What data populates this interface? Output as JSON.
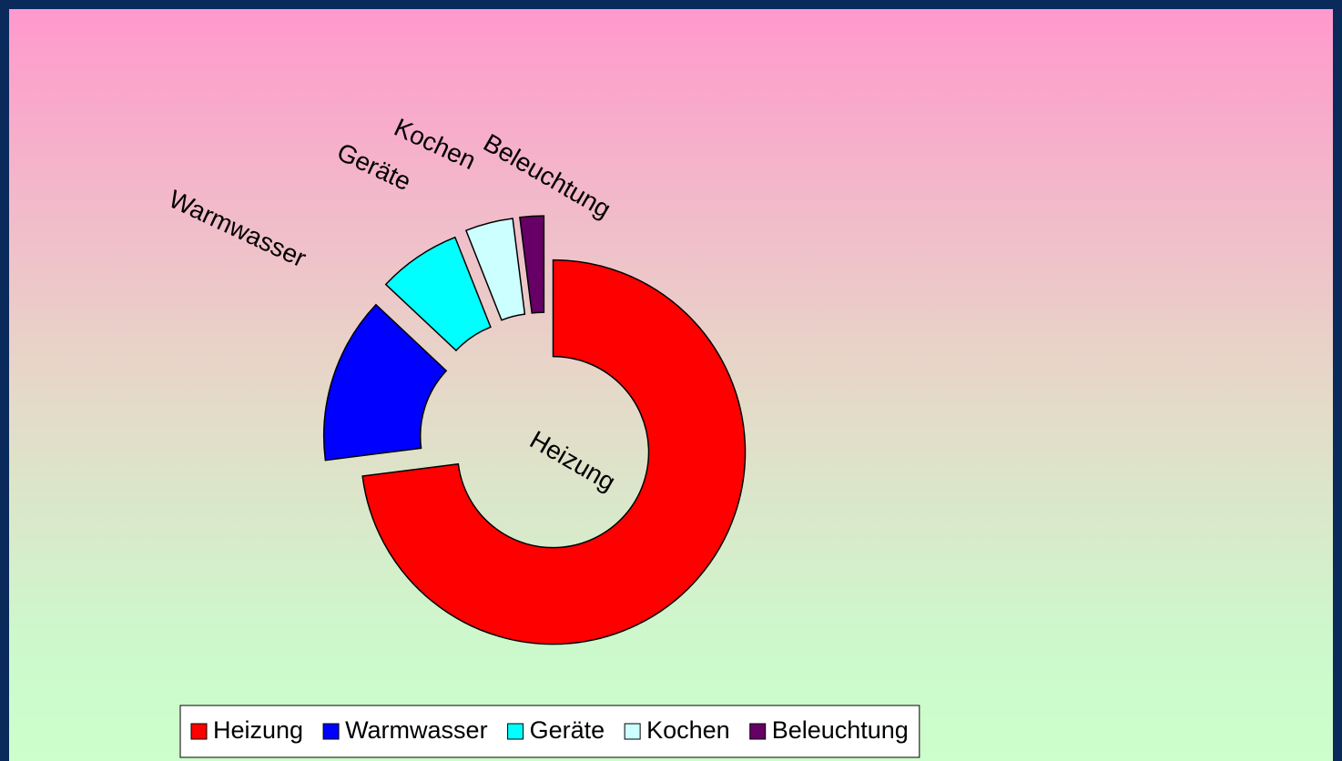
{
  "chart_data": {
    "type": "donut",
    "categories": [
      "Heizung",
      "Warmwasser",
      "Geräte",
      "Kochen",
      "Beleuchtung"
    ],
    "values": [
      73,
      14,
      7,
      4,
      2
    ],
    "colors": [
      "#ff0000",
      "#0000ff",
      "#00ffff",
      "#ccffff",
      "#660066"
    ],
    "legend": "bottom"
  }
}
